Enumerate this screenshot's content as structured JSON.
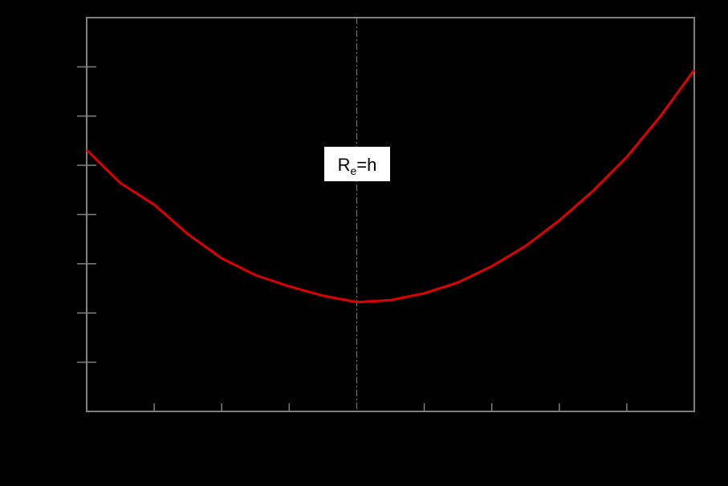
{
  "chart_data": {
    "type": "line",
    "x": [
      0,
      0.5,
      1,
      1.5,
      2,
      2.5,
      3,
      3.5,
      4,
      4.5,
      5,
      5.5,
      6,
      6.5,
      7,
      7.5,
      8,
      8.5,
      9
    ],
    "series": [
      {
        "color": "#e00000",
        "values": [
          5.31,
          4.64,
          4.2,
          3.6,
          3.11,
          2.77,
          2.54,
          2.35,
          2.22,
          2.26,
          2.4,
          2.62,
          2.95,
          3.36,
          3.88,
          4.48,
          5.17,
          6.0,
          6.94
        ]
      }
    ],
    "xlim": [
      0,
      9
    ],
    "xticks": [
      1,
      2,
      3,
      5,
      6,
      7,
      8
    ],
    "ylim": [
      0,
      8
    ],
    "yticks": [
      1,
      2,
      3,
      4,
      5,
      6,
      7
    ],
    "vline": 4,
    "annotation": {
      "base": "R",
      "sub": "e",
      "tail": "=h"
    }
  }
}
